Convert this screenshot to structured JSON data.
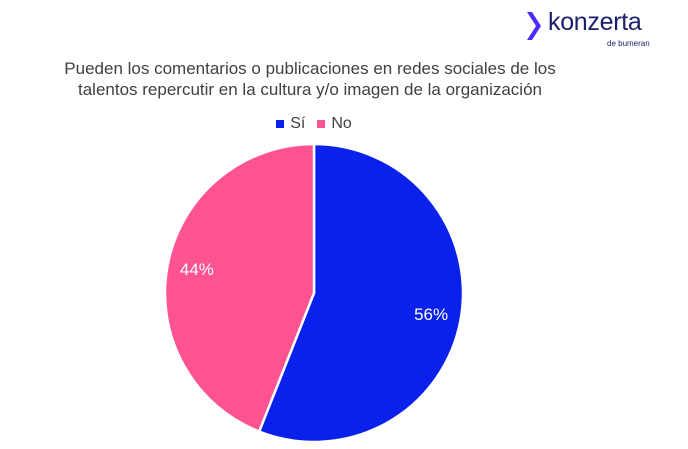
{
  "logo": {
    "name": "konzerta",
    "subtitle": "de bumeran",
    "mark_color": "#4b2bff",
    "text_color": "#1a1f6b"
  },
  "chart_data": {
    "type": "pie",
    "title": "Pueden los comentarios o publicaciones en redes sociales de los talentos repercutir en la cultura y/o imagen de la organización",
    "title_lines": [
      "Pueden los comentarios o publicaciones en redes sociales de los",
      "talentos repercutir en la cultura y/o imagen de la organización"
    ],
    "legend_placement": "top",
    "slices": [
      {
        "label": "Sí",
        "value": 56,
        "display": "56%",
        "color": "#0a21ec"
      },
      {
        "label": "No",
        "value": 44,
        "display": "44%",
        "color": "#fd5393"
      }
    ]
  }
}
